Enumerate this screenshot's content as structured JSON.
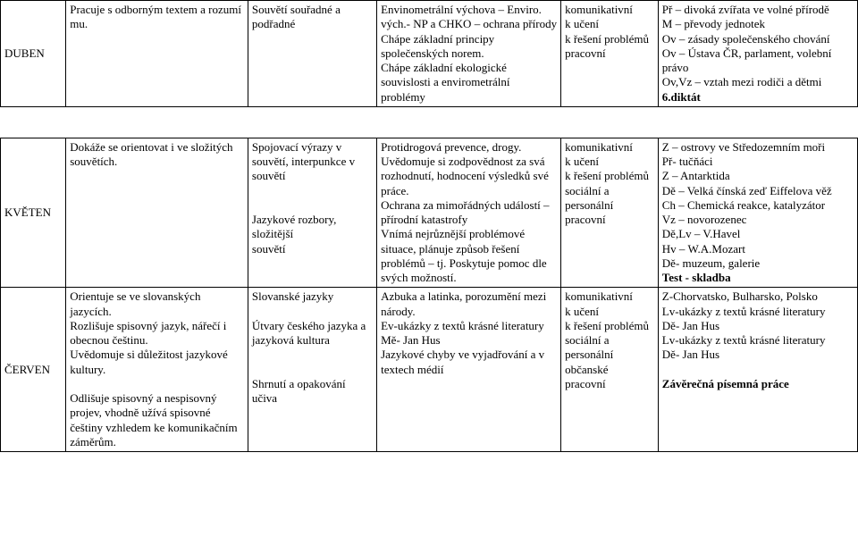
{
  "rows": [
    {
      "month": "DUBEN",
      "a": "Pracuje s odborným textem a rozumí mu.",
      "b": "Souvětí souřadné a podřadné",
      "c": "Envinometrální výchova – Enviro. vých.- NP a CHKO – ochrana přírody\nChápe základní principy společenských norem.\nChápe základní ekologické souvislosti a envirometrální problémy",
      "d": "komunikativní\nk učení\nk řešení problémů\npracovní",
      "e_plain": "Př – divoká zvířata ve volné přírodě\nM – převody jednotek\nOv – zásady společenského chování\nOv – Ústava ČR, parlament, volební právo\nOv,Vz – vztah mezi rodiči a dětmi",
      "e_bold": "6.diktát"
    },
    {
      "month": "KVĚTEN",
      "a": "Dokáže se orientovat i ve složitých souvětích.",
      "b": "Spojovací výrazy v souvětí, interpunkce v souvětí\n\n\nJazykové rozbory, složitější\n souvětí",
      "c": "Protidrogová prevence, drogy.\nUvědomuje si zodpovědnost za svá rozhodnutí, hodnocení výsledků své práce.\nOchrana za mimořádných událostí – přírodní katastrofy\nVnímá nejrůznější problémové situace, plánuje způsob řešení problémů – tj. Poskytuje pomoc dle svých možností.",
      "d": "komunikativní\nk učení\nk řešení problémů\nsociální a personální\npracovní",
      "e_plain": "Z – ostrovy ve Středozemním moři\nPř- tučňáci\nZ – Antarktida\nDě – Velká čínská zeď Eiffelova věž\nCh – Chemická reakce, katalyzátor\nVz – novorozenec\nDě,Lv – V.Havel\nHv – W.A.Mozart\nDě- muzeum, galerie",
      "e_bold": "Test - skladba"
    },
    {
      "month": "ČERVEN",
      "a": "Orientuje se ve slovanských jazycích.\nRozlišuje spisovný jazyk, nářečí i obecnou češtinu.\nUvědomuje si důležitost jazykové kultury.\n\nOdlišuje spisovný a nespisovný projev, vhodně užívá spisovné češtiny vzhledem ke komunikačním záměrům.",
      "b": "Slovanské jazyky\n\nÚtvary českého jazyka a jazyková kultura\n\n\nShrnutí a opakování učiva",
      "c": "Azbuka a latinka, porozumění mezi národy.\nEv-ukázky z textů krásné literatury\nMě- Jan Hus\nJazykové chyby ve vyjadřování a v textech médií",
      "d": "komunikativní\nk učení\nk řešení problémů\nsociální a personální\nobčanské\npracovní",
      "e_plain": "Z-Chorvatsko, Bulharsko, Polsko\nLv-ukázky z textů krásné literatury\nDě- Jan Hus\nLv-ukázky z textů krásné literatury\nDě- Jan Hus\n",
      "e_bold": "Závěrečná písemná práce"
    }
  ]
}
